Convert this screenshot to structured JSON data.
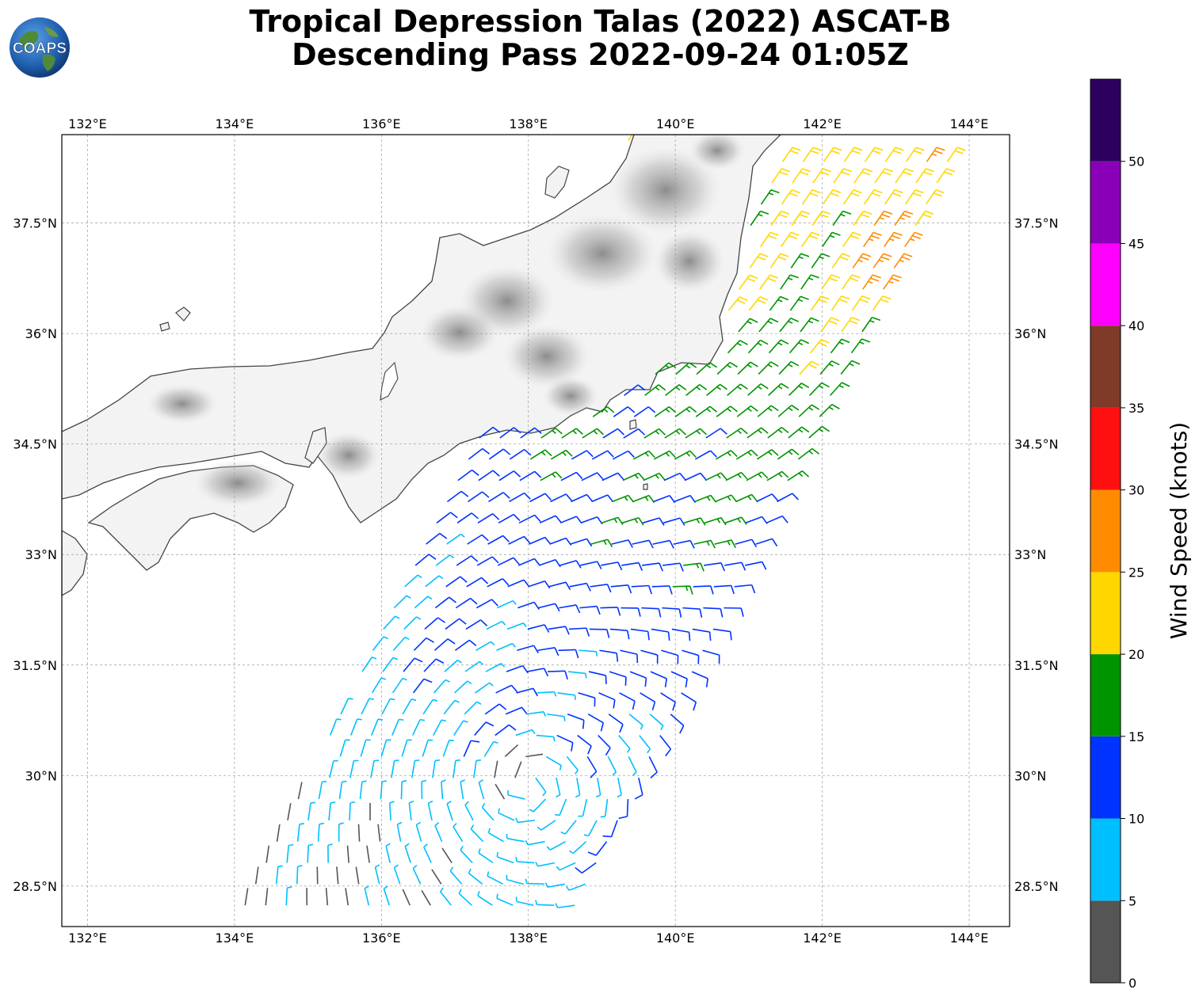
{
  "title": {
    "line1": "Tropical Depression Talas (2022) ASCAT-B",
    "line2": "Descending Pass 2022-09-24 01:05Z"
  },
  "logo": {
    "text": "COAPS",
    "icon": "globe-icon"
  },
  "map": {
    "lon_range": [
      131.65,
      144.55
    ],
    "lat_range": [
      27.95,
      38.7
    ],
    "lon_ticks": [
      {
        "value": 132,
        "label": "132°E"
      },
      {
        "value": 134,
        "label": "134°E"
      },
      {
        "value": 136,
        "label": "136°E"
      },
      {
        "value": 138,
        "label": "138°E"
      },
      {
        "value": 140,
        "label": "140°E"
      },
      {
        "value": 142,
        "label": "142°E"
      },
      {
        "value": 144,
        "label": "144°E"
      }
    ],
    "lat_ticks": [
      {
        "value": 28.5,
        "label": "28.5°N"
      },
      {
        "value": 30,
        "label": "30°N"
      },
      {
        "value": 31.5,
        "label": "31.5°N"
      },
      {
        "value": 33,
        "label": "33°N"
      },
      {
        "value": 34.5,
        "label": "34.5°N"
      },
      {
        "value": 36,
        "label": "36°N"
      },
      {
        "value": 37.5,
        "label": "37.5°N"
      }
    ],
    "grid": true,
    "land_color": "#f2f2f2",
    "coast_color": "#444444"
  },
  "colorbar": {
    "label": "Wind Speed (knots)",
    "bounds": [
      0,
      5,
      10,
      15,
      20,
      25,
      30,
      35,
      40,
      45,
      50,
      55
    ],
    "colors": [
      "#555555",
      "#00bfff",
      "#0033ff",
      "#009400",
      "#ffd700",
      "#ff8c00",
      "#ff1010",
      "#7f3a28",
      "#ff00ff",
      "#8a00b8",
      "#2d005f"
    ],
    "tick_labels": [
      "0",
      "5",
      "10",
      "15",
      "20",
      "25",
      "30",
      "35",
      "40",
      "45",
      "50"
    ]
  },
  "chart_data": {
    "type": "wind_barbs",
    "units": "knots",
    "swath_corners_lonlat": [
      [
        134.0,
        27.95
      ],
      [
        138.7,
        27.95
      ],
      [
        144.0,
        38.5
      ],
      [
        139.4,
        38.7
      ]
    ]
  }
}
